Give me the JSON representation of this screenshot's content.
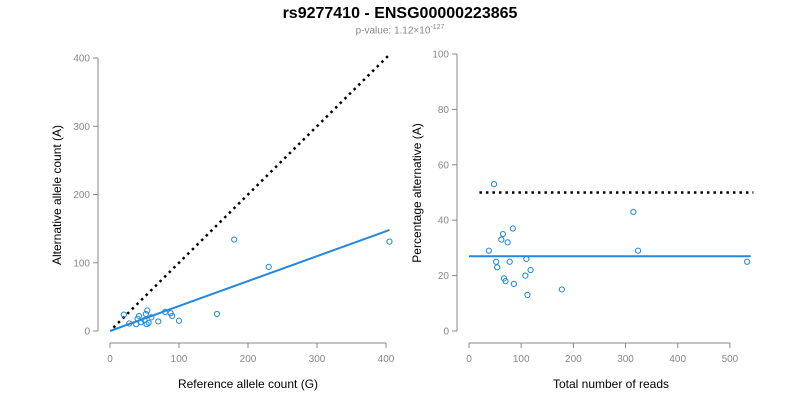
{
  "header": {
    "title": "rs9277410 - ENSG00000223865",
    "pvalue_prefix": "p-value: 1.12×10",
    "pvalue_exp": "-127"
  },
  "colors": {
    "points": "#1f88d8",
    "fit": "#2288e0",
    "reference": "#000000",
    "axis": "#888888"
  },
  "chart_data": [
    {
      "type": "scatter",
      "xlabel": "Reference allele count (G)",
      "ylabel": "Alternative allele count (A)",
      "xlim": [
        0,
        400
      ],
      "ylim": [
        0,
        400
      ],
      "xticks": [
        0,
        100,
        200,
        300,
        400
      ],
      "yticks": [
        0,
        100,
        200,
        300,
        400
      ],
      "points": [
        [
          20,
          24
        ],
        [
          28,
          11
        ],
        [
          38,
          10
        ],
        [
          40,
          18
        ],
        [
          42,
          22
        ],
        [
          45,
          13
        ],
        [
          50,
          16
        ],
        [
          52,
          25
        ],
        [
          53,
          10
        ],
        [
          54,
          30
        ],
        [
          56,
          12
        ],
        [
          60,
          20
        ],
        [
          70,
          14
        ],
        [
          80,
          28
        ],
        [
          88,
          26
        ],
        [
          90,
          22
        ],
        [
          100,
          15
        ],
        [
          155,
          25
        ],
        [
          180,
          134
        ],
        [
          230,
          94
        ],
        [
          405,
          131
        ]
      ],
      "reference_line": {
        "style": "dotted",
        "from": [
          5,
          5
        ],
        "to": [
          405,
          405
        ]
      },
      "fit_line": {
        "from": [
          0,
          0
        ],
        "to": [
          405,
          148
        ]
      }
    },
    {
      "type": "scatter",
      "xlabel": "Total number of reads",
      "ylabel": "Percentage alternative (A)",
      "xlim": [
        0,
        550
      ],
      "ylim": [
        0,
        100
      ],
      "xticks": [
        0,
        100,
        200,
        300,
        400,
        500
      ],
      "yticks": [
        0,
        20,
        40,
        60,
        80,
        100
      ],
      "points": [
        [
          38,
          29
        ],
        [
          48,
          53
        ],
        [
          52,
          25
        ],
        [
          54,
          23
        ],
        [
          62,
          33
        ],
        [
          65,
          35
        ],
        [
          67,
          19
        ],
        [
          70,
          18
        ],
        [
          74,
          32
        ],
        [
          78,
          25
        ],
        [
          84,
          37
        ],
        [
          86,
          17
        ],
        [
          108,
          20
        ],
        [
          110,
          26
        ],
        [
          112,
          13
        ],
        [
          118,
          22
        ],
        [
          178,
          15
        ],
        [
          315,
          43
        ],
        [
          324,
          29
        ],
        [
          533,
          25
        ]
      ],
      "reference_line": {
        "style": "dotted",
        "y": 50,
        "x_range": [
          20,
          545
        ]
      },
      "fit_line": {
        "y": 27,
        "x_range": [
          0,
          540
        ]
      }
    }
  ]
}
